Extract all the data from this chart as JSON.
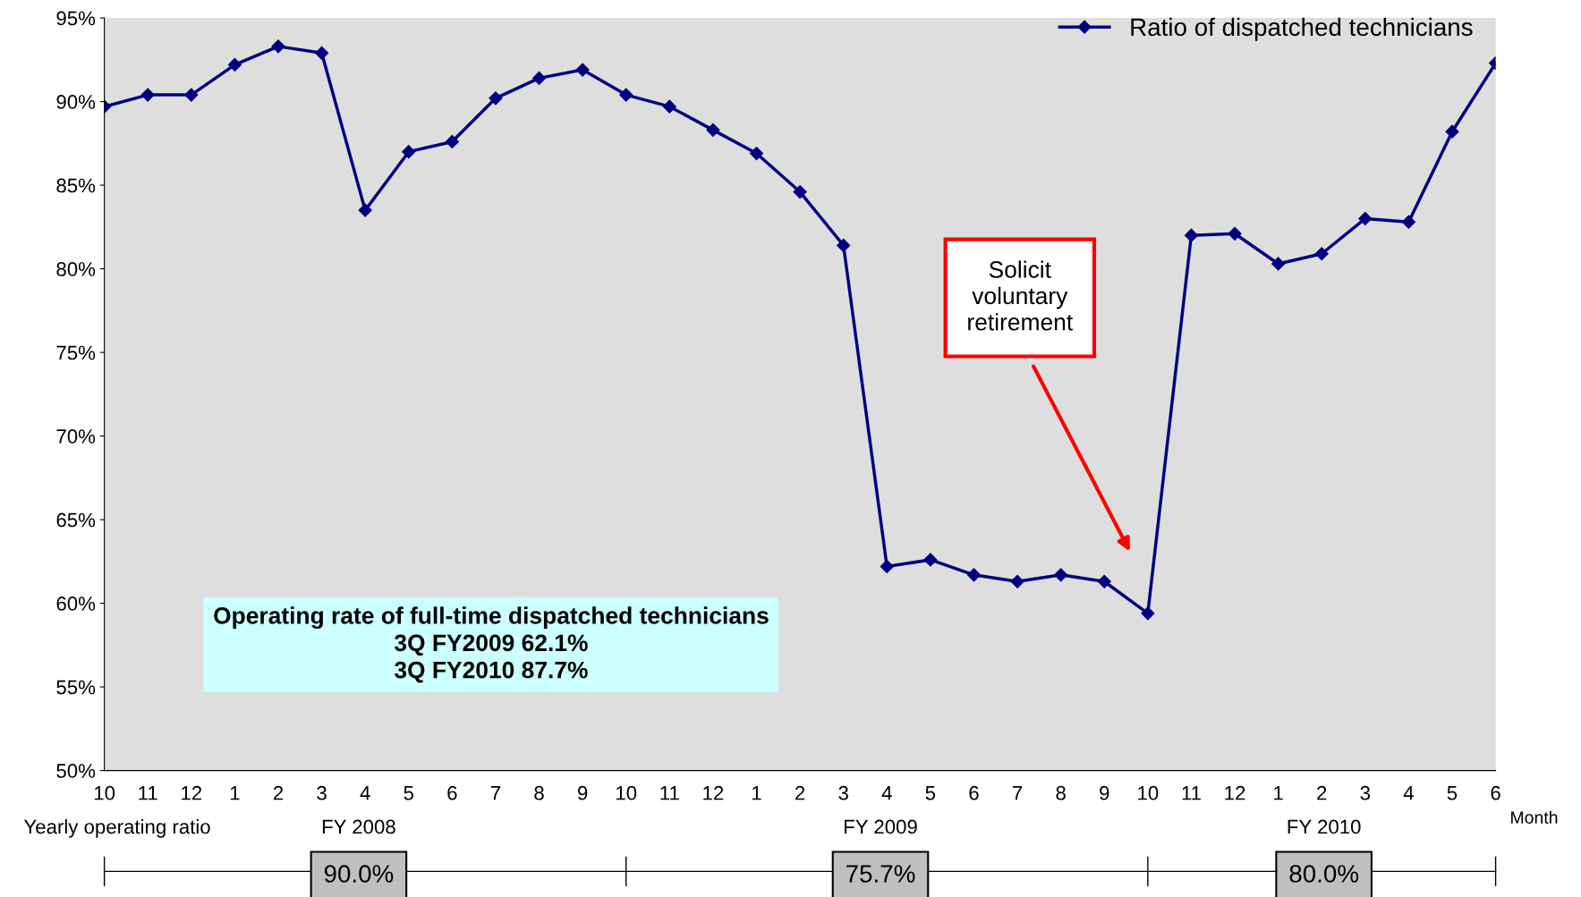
{
  "chart_data": {
    "type": "line",
    "categories": [
      "10",
      "11",
      "12",
      "1",
      "2",
      "3",
      "4",
      "5",
      "6",
      "7",
      "8",
      "9",
      "10",
      "11",
      "12",
      "1",
      "2",
      "3",
      "4",
      "5",
      "6",
      "7",
      "8",
      "9",
      "10",
      "11",
      "12",
      "1",
      "2",
      "3",
      "4",
      "5",
      "6"
    ],
    "series": [
      {
        "name": "Ratio of dispatched technicians",
        "color": "#000080",
        "values": [
          89.7,
          90.4,
          90.4,
          92.2,
          93.3,
          92.9,
          83.5,
          87.0,
          87.6,
          90.2,
          91.4,
          91.9,
          90.4,
          89.7,
          88.3,
          86.9,
          84.6,
          81.4,
          62.2,
          62.6,
          61.7,
          61.3,
          61.7,
          61.3,
          59.4,
          82.0,
          82.1,
          80.3,
          80.9,
          83.0,
          82.8,
          88.2,
          92.3
        ]
      }
    ],
    "xlabel": "Month",
    "ylim": [
      50,
      95
    ],
    "yticks": [
      {
        "value": 50,
        "label": "50%"
      },
      {
        "value": 55,
        "label": "55%"
      },
      {
        "value": 60,
        "label": "60%"
      },
      {
        "value": 65,
        "label": "65%"
      },
      {
        "value": 70,
        "label": "70%"
      },
      {
        "value": 75,
        "label": "75%"
      },
      {
        "value": 80,
        "label": "80%"
      },
      {
        "value": 85,
        "label": "85%"
      },
      {
        "value": 90,
        "label": "90%"
      },
      {
        "value": 95,
        "label": "95%"
      }
    ],
    "marker": "diamond",
    "line_style": "solid",
    "grid": false,
    "legend": "top right",
    "annotations": [
      "Operating rate of full-time dispatched technicians\n3Q FY2009 62.1%\n3Q FY2010 87.7%",
      "Solicit\nvoluntary\nretirement",
      "Yearly operating ratio",
      "FY 2008",
      "90.0%",
      "FY 2009",
      "75.7%",
      "FY 2010",
      "80.0%"
    ]
  }
}
